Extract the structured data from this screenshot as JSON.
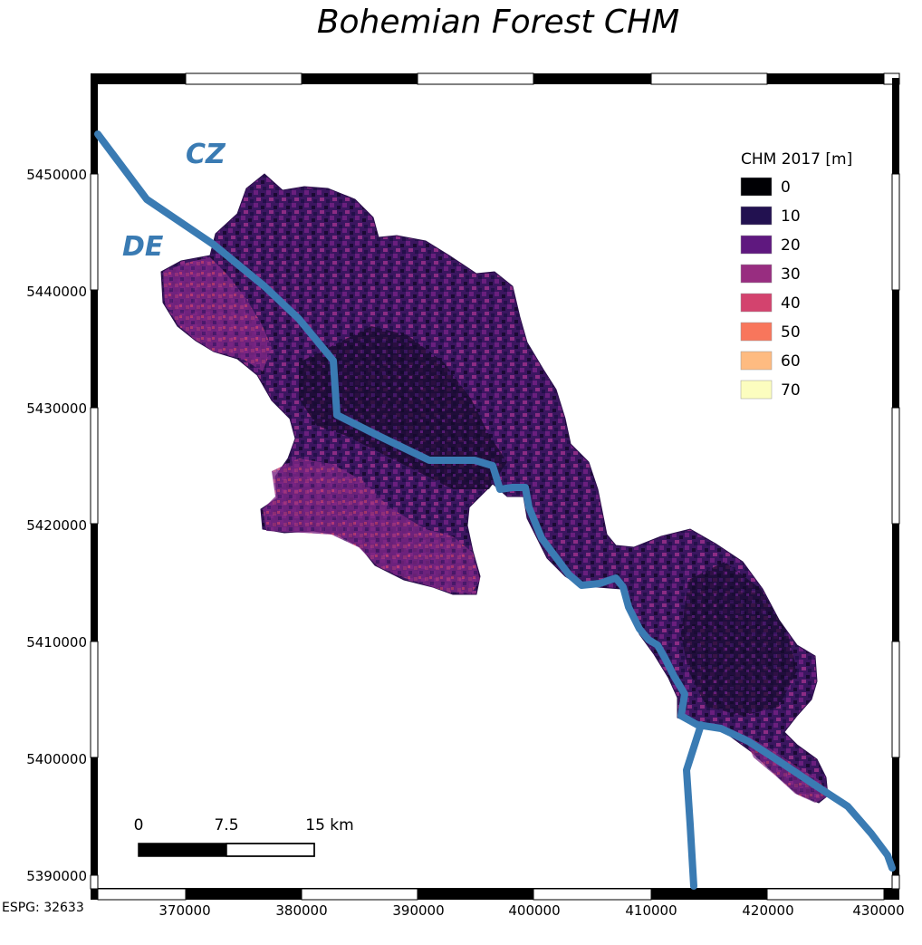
{
  "title": "Bohemian Forest CHM",
  "crs_label": "ESPG: 32633",
  "x_axis": {
    "ticks": [
      "370000",
      "380000",
      "390000",
      "400000",
      "410000",
      "420000",
      "430000"
    ]
  },
  "y_axis": {
    "ticks": [
      "5450000",
      "5440000",
      "5430000",
      "5420000",
      "5410000",
      "5400000",
      "5390000"
    ]
  },
  "country_labels": {
    "north": "CZ",
    "south": "DE"
  },
  "legend": {
    "title": "CHM 2017 [m]",
    "items": [
      {
        "label": "0",
        "color": "#000004"
      },
      {
        "label": "10",
        "color": "#221150"
      },
      {
        "label": "20",
        "color": "#5f187f"
      },
      {
        "label": "30",
        "color": "#982d80"
      },
      {
        "label": "40",
        "color": "#d3436e"
      },
      {
        "label": "50",
        "color": "#f8765c"
      },
      {
        "label": "60",
        "color": "#febb81"
      },
      {
        "label": "70",
        "color": "#fcfdbf"
      }
    ]
  },
  "scale_bar": {
    "labels": [
      "0",
      "7.5",
      "15 km"
    ]
  },
  "colors": {
    "border_line": "#3a7bb3",
    "forest_dark": "#1c0d3a",
    "forest_mid": "#4a1a70",
    "forest_light": "#8a2e86"
  }
}
